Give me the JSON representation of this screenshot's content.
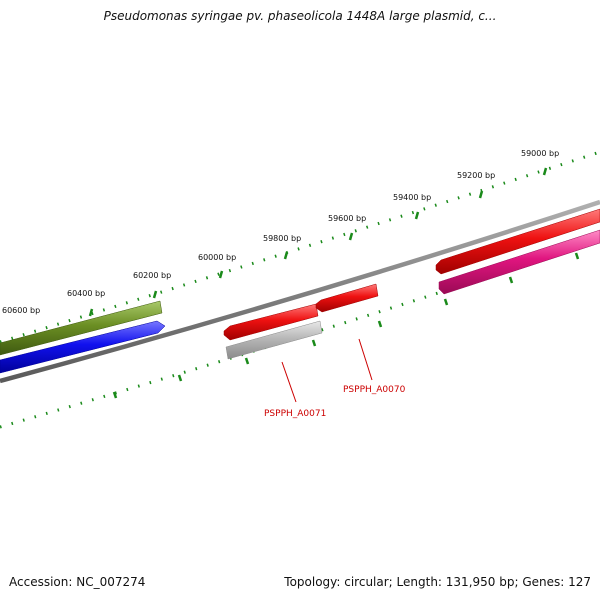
{
  "title": "Pseudomonas syringae pv. phaseolicola 1448A large plasmid, c...",
  "footer": {
    "accession": "Accession: NC_007274",
    "summary": "Topology: circular; Length: 131,950 bp; Genes: 127"
  },
  "ruler": {
    "tick_color": "#1a8a1a",
    "labels": [
      "59000 bp",
      "59200 bp",
      "59400 bp",
      "59600 bp",
      "59800 bp",
      "60000 bp",
      "60200 bp",
      "60400 bp",
      "60600 bp"
    ]
  },
  "genes": [
    {
      "name": "PSPPH_A0070",
      "color": "#ee1111"
    },
    {
      "name": "PSPPH_A0071",
      "color": "#ee1111"
    }
  ],
  "colors": {
    "backbone": "#808080",
    "forward_red": "#ee1111",
    "reverse_magenta": "#e0157f",
    "olive": "#6b8e23",
    "blue": "#1111ee",
    "grey_feature": "#b8b8b8",
    "label_red": "#cc0000"
  }
}
